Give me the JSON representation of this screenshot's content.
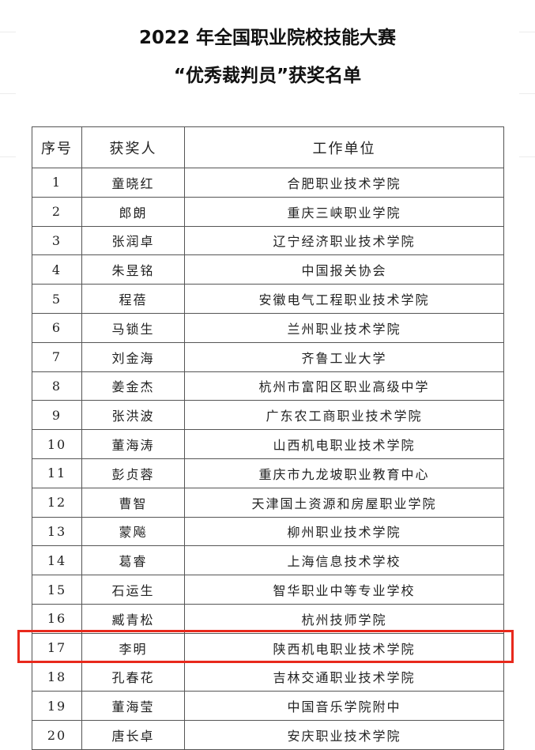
{
  "title_line1": "2022 年全国职业院校技能大赛",
  "title_line2": "“优秀裁判员”获奖名单",
  "headers": [
    "序号",
    "获奖人",
    "工作单位"
  ],
  "rows": [
    [
      "1",
      "童晓红",
      "合肥职业技术学院"
    ],
    [
      "2",
      "郎朗",
      "重庆三峡职业学院"
    ],
    [
      "3",
      "张润卓",
      "辽宁经济职业技术学院"
    ],
    [
      "4",
      "朱昱铭",
      "中国报关协会"
    ],
    [
      "5",
      "程蓓",
      "安徽电气工程职业技术学院"
    ],
    [
      "6",
      "马锁生",
      "兰州职业技术学院"
    ],
    [
      "7",
      "刘金海",
      "齐鲁工业大学"
    ],
    [
      "8",
      "姜金杰",
      "杭州市富阳区职业高级中学"
    ],
    [
      "9",
      "张洪波",
      "广东农工商职业技术学院"
    ],
    [
      "10",
      "董海涛",
      "山西机电职业技术学院"
    ],
    [
      "11",
      "彭贞蓉",
      "重庆市九龙坡职业教育中心"
    ],
    [
      "12",
      "曹智",
      "天津国土资源和房屋职业学院"
    ],
    [
      "13",
      "蒙飚",
      "柳州职业技术学院"
    ],
    [
      "14",
      "葛睿",
      "上海信息技术学校"
    ],
    [
      "15",
      "石运生",
      "智华职业中等专业学校"
    ],
    [
      "16",
      "臧青松",
      "杭州技师学院"
    ],
    [
      "17",
      "李明",
      "陕西机电职业技术学院"
    ],
    [
      "18",
      "孔春花",
      "吉林交通职业技术学院"
    ],
    [
      "19",
      "董海莹",
      "中国音乐学院附中"
    ],
    [
      "20",
      "唐长卓",
      "安庆职业技术学院"
    ]
  ],
  "highlighted_row": "17",
  "highlight_color": "#e8291c"
}
